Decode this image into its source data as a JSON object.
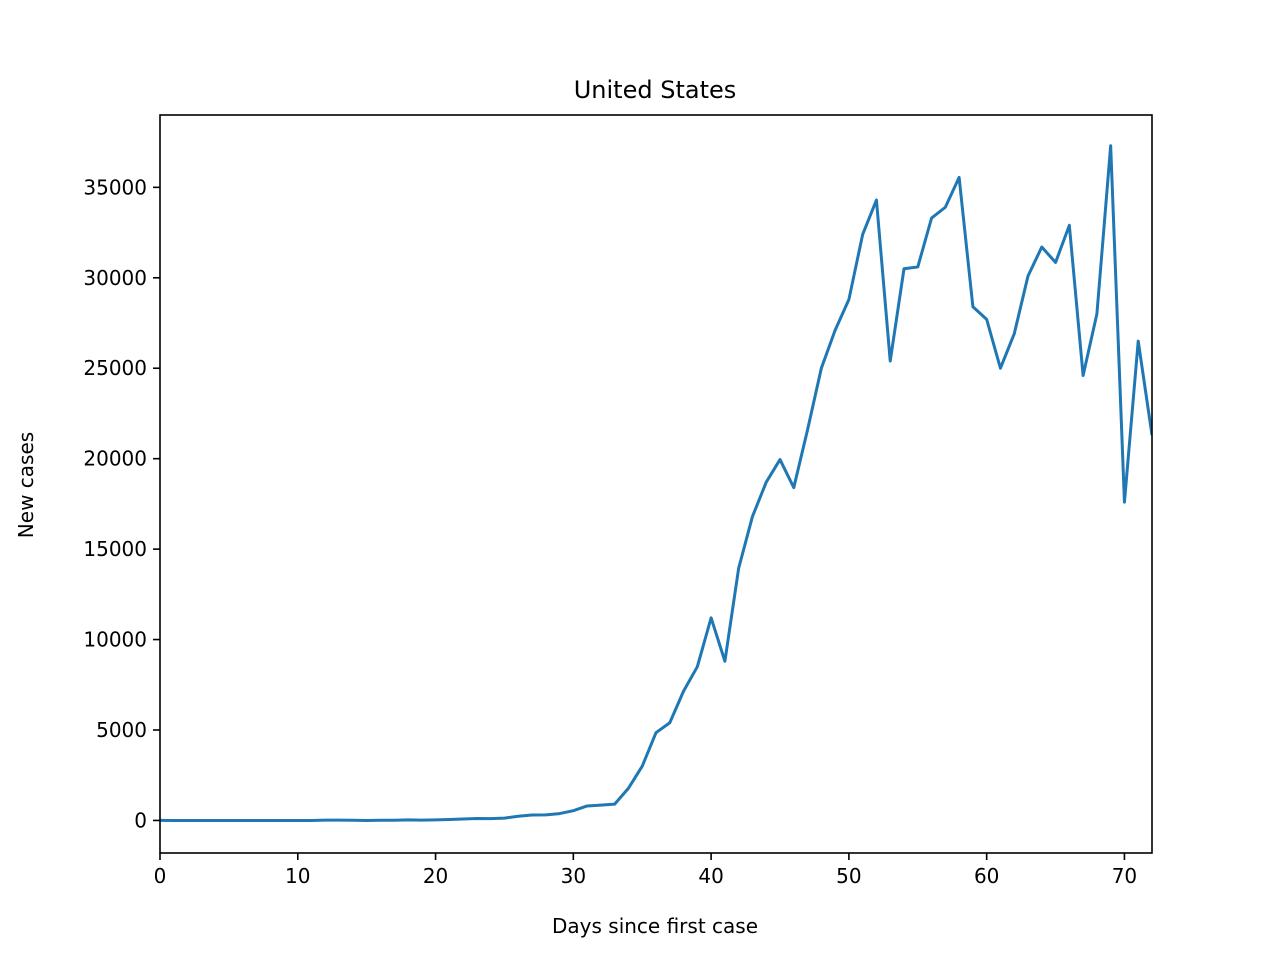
{
  "chart_data": {
    "type": "line",
    "title": "United States",
    "xlabel": "Days since first case",
    "ylabel": "New cases",
    "xlim": [
      0,
      72
    ],
    "ylim": [
      -1800,
      39000
    ],
    "xticks": [
      0,
      10,
      20,
      30,
      40,
      50,
      60,
      70
    ],
    "yticks": [
      0,
      5000,
      10000,
      15000,
      20000,
      25000,
      30000,
      35000
    ],
    "x_tick_labels": [
      "0",
      "10",
      "20",
      "30",
      "40",
      "50",
      "60",
      "70"
    ],
    "y_tick_labels": [
      "0",
      "5000",
      "10000",
      "15000",
      "20000",
      "25000",
      "30000",
      "35000"
    ],
    "grid": false,
    "series": [
      {
        "color": "#1f77b4",
        "x": [
          0,
          1,
          2,
          3,
          4,
          5,
          6,
          7,
          8,
          9,
          10,
          11,
          12,
          13,
          14,
          15,
          16,
          17,
          18,
          19,
          20,
          21,
          22,
          23,
          24,
          25,
          26,
          27,
          28,
          29,
          30,
          31,
          32,
          33,
          34,
          35,
          36,
          37,
          38,
          39,
          40,
          41,
          42,
          43,
          44,
          45,
          46,
          47,
          48,
          49,
          50,
          51,
          52,
          53,
          54,
          55,
          56,
          57,
          58,
          59,
          60,
          61,
          62,
          63,
          64,
          65,
          66,
          67,
          68,
          69,
          70,
          71,
          72
        ],
        "y": [
          1,
          0,
          0,
          0,
          0,
          0,
          0,
          0,
          0,
          0,
          0,
          0,
          20,
          20,
          10,
          0,
          10,
          10,
          30,
          20,
          30,
          50,
          80,
          110,
          100,
          130,
          230,
          300,
          310,
          380,
          540,
          800,
          850,
          900,
          1780,
          3000,
          4850,
          5400,
          7150,
          8500,
          11200,
          8800,
          13950,
          16800,
          18700,
          19950,
          18400,
          21600,
          25000,
          27100,
          28800,
          32400,
          34300,
          25400,
          30500,
          30600,
          33300,
          33900,
          35550,
          28400,
          27700,
          25000,
          26900,
          30100,
          31700,
          30850,
          32900,
          24600,
          28000,
          37300,
          17600,
          26500,
          21300
        ]
      }
    ]
  }
}
